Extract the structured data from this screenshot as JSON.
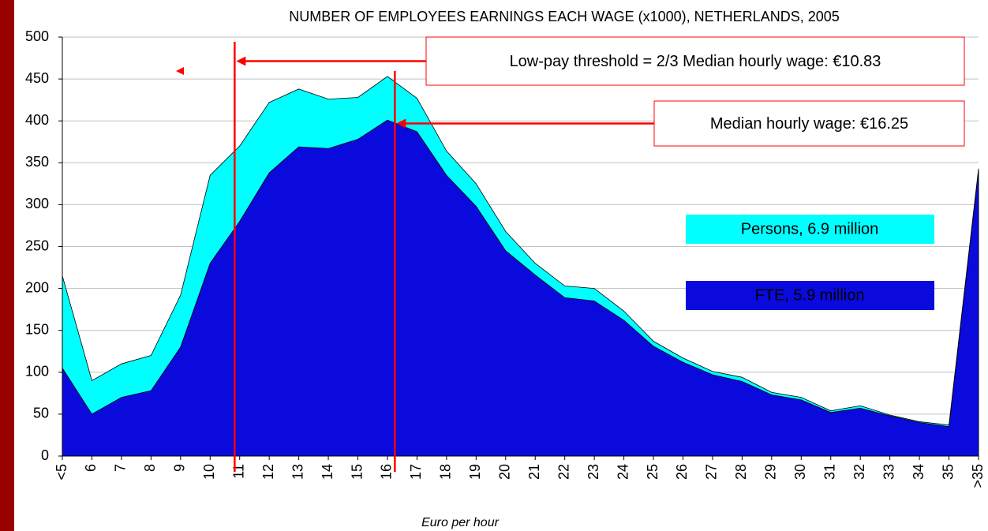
{
  "chart_data": {
    "type": "area",
    "title": "NUMBER OF EMPLOYEES EARNINGS EACH WAGE (x1000), NETHERLANDS, 2005",
    "x_label": "Euro per hour",
    "categories": [
      "<5",
      "6",
      "7",
      "8",
      "9",
      "10",
      "11",
      "12",
      "13",
      "14",
      "15",
      "16",
      "17",
      "18",
      "19",
      "20",
      "21",
      "22",
      "23",
      "24",
      "25",
      "26",
      "27",
      "28",
      "29",
      "30",
      "31",
      "32",
      "33",
      "34",
      "35",
      ">35"
    ],
    "series": [
      {
        "name": "Persons, 6.9 million",
        "color": "#00ffff",
        "values": [
          215,
          90,
          110,
          120,
          192,
          335,
          370,
          422,
          438,
          426,
          428,
          453,
          427,
          364,
          325,
          268,
          230,
          203,
          200,
          173,
          137,
          117,
          101,
          94,
          76,
          70,
          54,
          60,
          49,
          41,
          37,
          343
        ]
      },
      {
        "name": "FTE, 5.9 million",
        "color": "#0a0adc",
        "values": [
          105,
          50,
          70,
          78,
          130,
          230,
          280,
          338,
          369,
          367,
          378,
          401,
          387,
          335,
          298,
          245,
          216,
          189,
          185,
          162,
          131,
          112,
          97,
          89,
          73,
          67,
          52,
          57,
          48,
          40,
          35,
          340
        ]
      }
    ],
    "ylim": [
      0,
      500
    ],
    "yticks": [
      0,
      50,
      100,
      150,
      200,
      250,
      300,
      350,
      400,
      450,
      500
    ],
    "grid": true,
    "annotations": [
      {
        "text": "Low-pay threshold = 2/3 Median hourly wage: €10.83",
        "x": 10.83,
        "color": "#ff0000"
      },
      {
        "text": "Median hourly wage: €16.25",
        "x": 16.25,
        "color": "#ff0000"
      }
    ]
  }
}
